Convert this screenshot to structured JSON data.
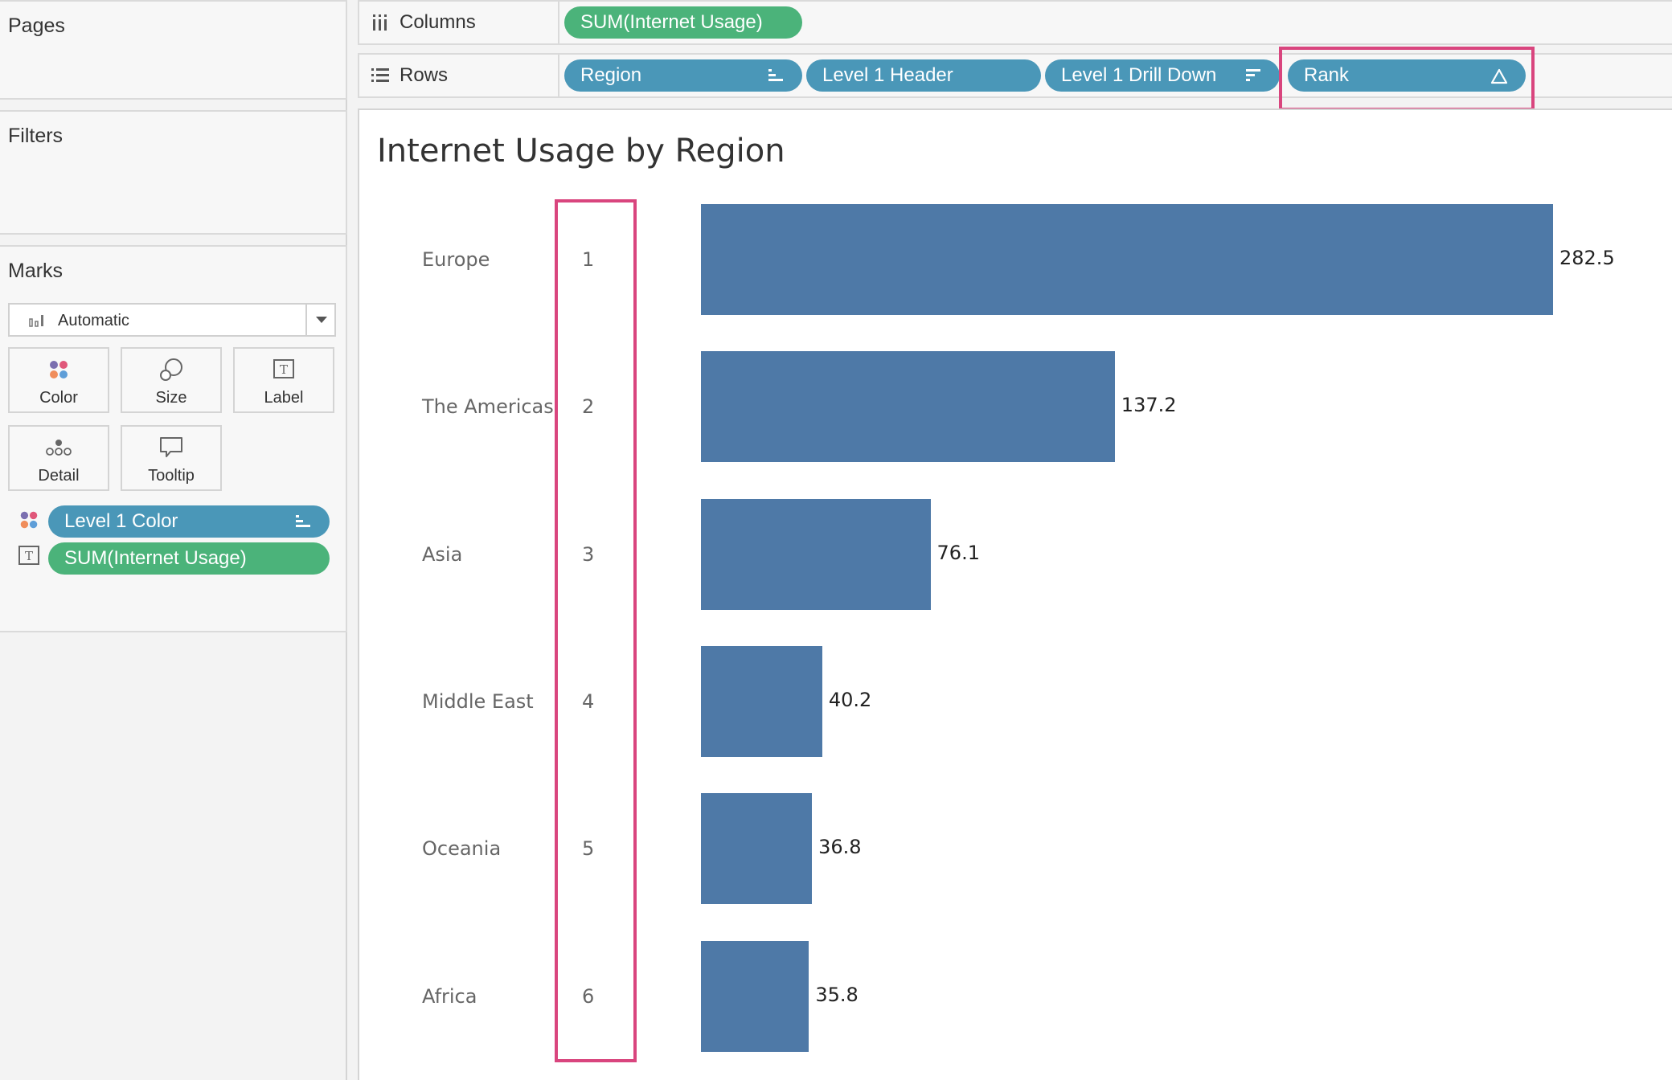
{
  "sidebar": {
    "pages_title": "Pages",
    "filters_title": "Filters",
    "marks_title": "Marks",
    "mark_type": "Automatic",
    "buttons": [
      {
        "label": "Color",
        "icon": "color-dots-icon"
      },
      {
        "label": "Size",
        "icon": "size-circles-icon"
      },
      {
        "label": "Label",
        "icon": "text-label-icon"
      },
      {
        "label": "Detail",
        "icon": "detail-dots-icon"
      },
      {
        "label": "Tooltip",
        "icon": "speech-bubble-icon"
      }
    ],
    "mark_fields": [
      {
        "label": "Level 1 Color",
        "icon": "color-dots-icon"
      },
      {
        "label": "SUM(Internet Usage)",
        "icon": "text-label-icon"
      }
    ]
  },
  "shelves": {
    "columns_label": "Columns",
    "columns_pills": [
      "SUM(Internet Usage)"
    ],
    "rows_label": "Rows",
    "rows_pills": [
      "Region",
      "Level 1 Header",
      "Level 1 Drill Down",
      "Rank"
    ]
  },
  "colors": {
    "bar": "#4e79a7",
    "pill_blue": "#4a97b8",
    "pill_green": "#4bb37a",
    "highlight": "#d9457e"
  },
  "chart_data": {
    "type": "bar",
    "title": "Internet Usage by Region",
    "categories": [
      "Europe",
      "The Americas",
      "Asia",
      "Middle East",
      "Oceania",
      "Africa"
    ],
    "ranks": [
      "1",
      "2",
      "3",
      "4",
      "5",
      "6"
    ],
    "values": [
      282.5,
      137.2,
      76.1,
      40.2,
      36.8,
      35.8
    ],
    "value_labels": [
      "282.5",
      "137.2",
      "76.1",
      "40.2",
      "36.8",
      "35.8"
    ],
    "orientation": "horizontal"
  }
}
